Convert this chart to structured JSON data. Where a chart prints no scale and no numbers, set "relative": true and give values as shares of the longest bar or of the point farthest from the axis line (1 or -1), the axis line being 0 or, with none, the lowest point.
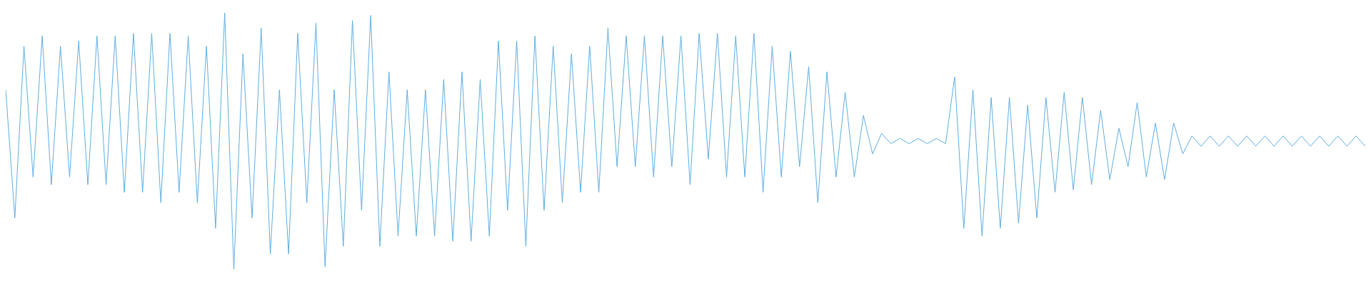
{
  "chart_data": {
    "type": "line",
    "relative": true,
    "categories": [
      null,
      null,
      null,
      null,
      null,
      null,
      null,
      null,
      null,
      null,
      null,
      null,
      null,
      null,
      null,
      null,
      null,
      null,
      null,
      null,
      null,
      null,
      null,
      null,
      null,
      null,
      null,
      null,
      null,
      null,
      null,
      null,
      null,
      null,
      null,
      null,
      null,
      null,
      null,
      null,
      null,
      null,
      null,
      null,
      null,
      null,
      null,
      null,
      null,
      null,
      null,
      null,
      null,
      null,
      null,
      null,
      null,
      null,
      null,
      null,
      null,
      null,
      null,
      null,
      null,
      null,
      null,
      null,
      null,
      null,
      null,
      null,
      null,
      null,
      null,
      null,
      null,
      null,
      null,
      null,
      null,
      null,
      null,
      null,
      null,
      null,
      null,
      null,
      null,
      null,
      null,
      null,
      null,
      null,
      null,
      null,
      null,
      null,
      null,
      null,
      null,
      null,
      null,
      null,
      null,
      null,
      null,
      null,
      null,
      null,
      null,
      null,
      null,
      null,
      null,
      null,
      null,
      null,
      null,
      null,
      null,
      null,
      null,
      null,
      null,
      null,
      null,
      null,
      null,
      null,
      null,
      null,
      null,
      null,
      null,
      null,
      null,
      null,
      null,
      null,
      null,
      null,
      null,
      null,
      null,
      null,
      null,
      null,
      null,
      null
    ],
    "series": [
      {
        "color": "#5dade2",
        "values": [
          0.7,
          0.2,
          0.87,
          0.36,
          0.91,
          0.33,
          0.87,
          0.36,
          0.89,
          0.33,
          0.91,
          0.33,
          0.91,
          0.3,
          0.92,
          0.3,
          0.92,
          0.26,
          0.92,
          0.3,
          0.91,
          0.26,
          0.87,
          0.16,
          1.0,
          0.0,
          0.84,
          0.2,
          0.94,
          0.06,
          0.7,
          0.06,
          0.92,
          0.26,
          0.96,
          0.01,
          0.7,
          0.09,
          0.97,
          0.23,
          0.99,
          0.09,
          0.77,
          0.13,
          0.7,
          0.13,
          0.7,
          0.13,
          0.74,
          0.11,
          0.77,
          0.11,
          0.74,
          0.13,
          0.89,
          0.23,
          0.89,
          0.09,
          0.91,
          0.23,
          0.87,
          0.26,
          0.84,
          0.3,
          0.87,
          0.3,
          0.94,
          0.4,
          0.91,
          0.4,
          0.91,
          0.36,
          0.91,
          0.4,
          0.91,
          0.33,
          0.92,
          0.43,
          0.92,
          0.36,
          0.91,
          0.36,
          0.92,
          0.3,
          0.87,
          0.36,
          0.85,
          0.4,
          0.79,
          0.26,
          0.77,
          0.36,
          0.69,
          0.36,
          0.6,
          0.45,
          0.53,
          0.49,
          0.51,
          0.49,
          0.51,
          0.49,
          0.51,
          0.49,
          0.75,
          0.16,
          0.7,
          0.13,
          0.67,
          0.16,
          0.67,
          0.18,
          0.64,
          0.2,
          0.67,
          0.3,
          0.69,
          0.31,
          0.67,
          0.33,
          0.62,
          0.35,
          0.55,
          0.4,
          0.65,
          0.36,
          0.57,
          0.35,
          0.57,
          0.45,
          0.52,
          0.48,
          0.52,
          0.48,
          0.52,
          0.48,
          0.52,
          0.48,
          0.52,
          0.48,
          0.52,
          0.48,
          0.52,
          0.48,
          0.52,
          0.48,
          0.52,
          0.48,
          0.52,
          0.48
        ]
      }
    ]
  }
}
